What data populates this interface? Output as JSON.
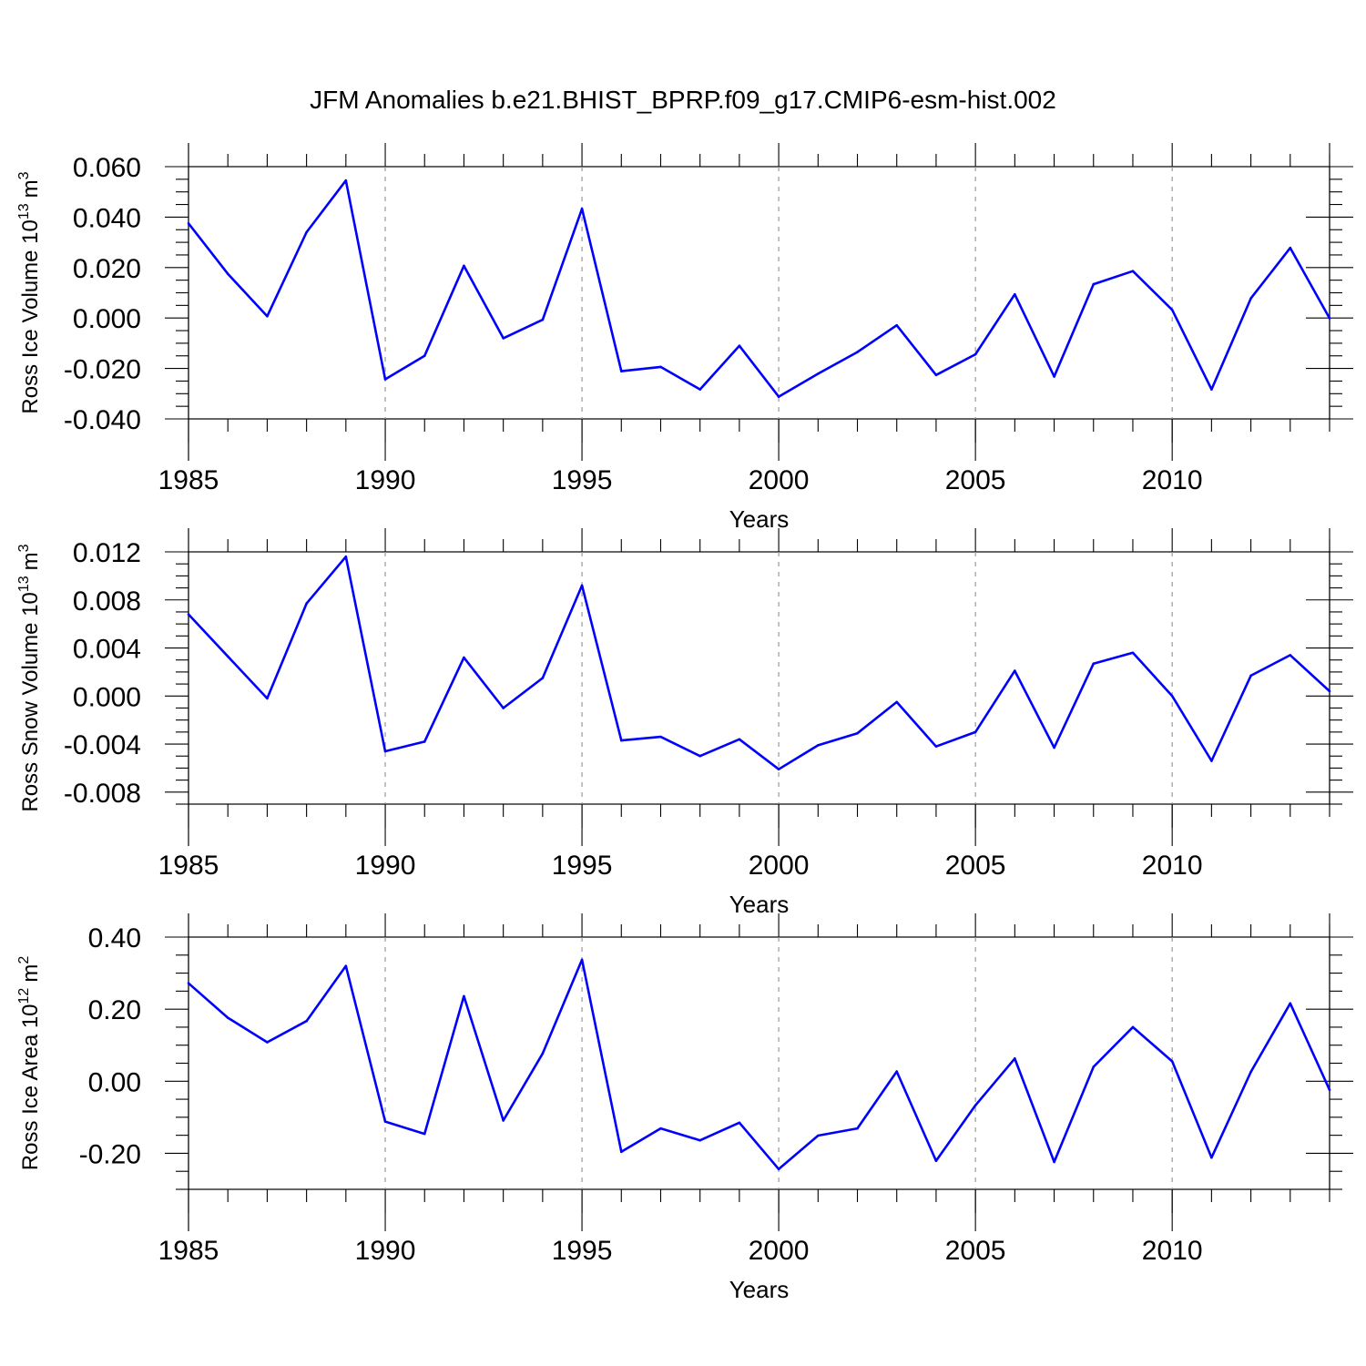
{
  "title": "JFM Anomalies b.e21.BHIST_BPRP.f09_g17.CMIP6-esm-hist.002",
  "line_color": "#0000ff",
  "grid_color": "#999999",
  "chart_data": [
    {
      "type": "line",
      "ylabel": "Ross Ice Volume",
      "units": {
        "base": "10",
        "exp": "13",
        "unit": "m",
        "unit_exp": "3"
      },
      "xlabel": "Years",
      "xlim": [
        1985,
        2014
      ],
      "ylim": [
        -0.04,
        0.06
      ],
      "x_ticks": [
        1985,
        1990,
        1995,
        2000,
        2005,
        2010
      ],
      "y_ticks": [
        -0.04,
        -0.02,
        0.0,
        0.02,
        0.04,
        0.06
      ],
      "y_tick_labels": [
        "-0.040",
        "-0.020",
        "0.000",
        "0.020",
        "0.040",
        "0.060"
      ],
      "grid_x": [
        1990,
        1995,
        2000,
        2005,
        2010
      ],
      "x": [
        1985,
        1986,
        1987,
        1988,
        1989,
        1990,
        1991,
        1992,
        1993,
        1994,
        1995,
        1996,
        1997,
        1998,
        1999,
        2000,
        2001,
        2002,
        2003,
        2004,
        2005,
        2006,
        2007,
        2008,
        2009,
        2010,
        2011,
        2012,
        2013,
        2014
      ],
      "values": [
        0.0375,
        0.0175,
        0.0007,
        0.034,
        0.0545,
        -0.0243,
        -0.015,
        0.0207,
        -0.008,
        -0.0007,
        0.0433,
        -0.0211,
        -0.0194,
        -0.0283,
        -0.011,
        -0.0312,
        -0.0221,
        -0.0135,
        -0.0029,
        -0.0226,
        -0.0144,
        0.0094,
        -0.0232,
        0.0134,
        0.0186,
        0.0032,
        -0.0283,
        0.0078,
        0.0278,
        -0.0001
      ]
    },
    {
      "type": "line",
      "ylabel": "Ross Snow Volume",
      "units": {
        "base": "10",
        "exp": "13",
        "unit": "m",
        "unit_exp": "3"
      },
      "xlabel": "Years",
      "xlim": [
        1985,
        2014
      ],
      "ylim": [
        -0.009,
        0.0118
      ],
      "x_ticks": [
        1985,
        1990,
        1995,
        2000,
        2005,
        2010
      ],
      "y_ticks": [
        -0.008,
        -0.004,
        0.0,
        0.004,
        0.008,
        0.012
      ],
      "y_tick_labels": [
        "-0.008",
        "-0.004",
        "0.000",
        "0.004",
        "0.008",
        "0.012"
      ],
      "grid_x": [
        1990,
        1995,
        2000,
        2005,
        2010
      ],
      "x": [
        1985,
        1986,
        1987,
        1988,
        1989,
        1990,
        1991,
        1992,
        1993,
        1994,
        1995,
        1996,
        1997,
        1998,
        1999,
        2000,
        2001,
        2002,
        2003,
        2004,
        2005,
        2006,
        2007,
        2008,
        2009,
        2010,
        2011,
        2012,
        2013,
        2014
      ],
      "values": [
        0.0068,
        0.0033,
        -0.0002,
        0.0077,
        0.0116,
        -0.0046,
        -0.0038,
        0.0032,
        -0.001,
        0.0015,
        0.0092,
        -0.0037,
        -0.0034,
        -0.005,
        -0.0036,
        -0.0061,
        -0.0041,
        -0.0031,
        -0.0005,
        -0.0042,
        -0.003,
        0.0021,
        -0.0043,
        0.0027,
        0.0036,
        0.0,
        -0.0054,
        0.0017,
        0.0034,
        0.0004
      ]
    },
    {
      "type": "line",
      "ylabel": "Ross Ice Area",
      "units": {
        "base": "10",
        "exp": "12",
        "unit": "m",
        "unit_exp": "2"
      },
      "xlabel": "Years",
      "xlim": [
        1985,
        2014
      ],
      "ylim": [
        -0.3,
        0.4
      ],
      "x_ticks": [
        1985,
        1990,
        1995,
        2000,
        2005,
        2010
      ],
      "y_ticks": [
        -0.2,
        0.0,
        0.2,
        0.4
      ],
      "y_tick_labels": [
        "-0.20",
        "0.00",
        "0.20",
        "0.40"
      ],
      "grid_x": [
        1990,
        1995,
        2000,
        2005,
        2010
      ],
      "x": [
        1985,
        1986,
        1987,
        1988,
        1989,
        1990,
        1991,
        1992,
        1993,
        1994,
        1995,
        1996,
        1997,
        1998,
        1999,
        2000,
        2001,
        2002,
        2003,
        2004,
        2005,
        2006,
        2007,
        2008,
        2009,
        2010,
        2011,
        2012,
        2013,
        2014
      ],
      "values": [
        0.272,
        0.176,
        0.108,
        0.167,
        0.32,
        -0.112,
        -0.146,
        0.236,
        -0.109,
        0.077,
        0.337,
        -0.196,
        -0.131,
        -0.164,
        -0.115,
        -0.244,
        -0.151,
        -0.131,
        0.027,
        -0.221,
        -0.067,
        0.063,
        -0.224,
        0.04,
        0.15,
        0.055,
        -0.212,
        0.026,
        0.216,
        -0.024
      ]
    }
  ]
}
